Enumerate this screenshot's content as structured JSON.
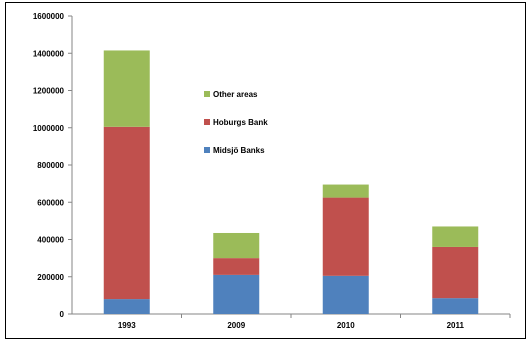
{
  "chart_data": {
    "type": "bar",
    "stacked": true,
    "categories": [
      "1993",
      "2009",
      "2010",
      "2011"
    ],
    "series": [
      {
        "name": "Midsjö Banks",
        "color": "#4f81bd",
        "values": [
          80000,
          210000,
          205000,
          85000
        ]
      },
      {
        "name": "Hoburgs Bank",
        "color": "#c0504d",
        "values": [
          925000,
          90000,
          420000,
          275000
        ]
      },
      {
        "name": "Other areas",
        "color": "#9bbb59",
        "values": [
          410000,
          135000,
          70000,
          110000
        ]
      }
    ],
    "ylim": [
      0,
      1600000
    ],
    "yticks": [
      "0",
      "200000",
      "400000",
      "600000",
      "800000",
      "1000000",
      "1200000",
      "1400000",
      "1600000"
    ],
    "title": "",
    "xlabel": "",
    "ylabel": "",
    "grid": false,
    "legend_position": "inside-center"
  }
}
